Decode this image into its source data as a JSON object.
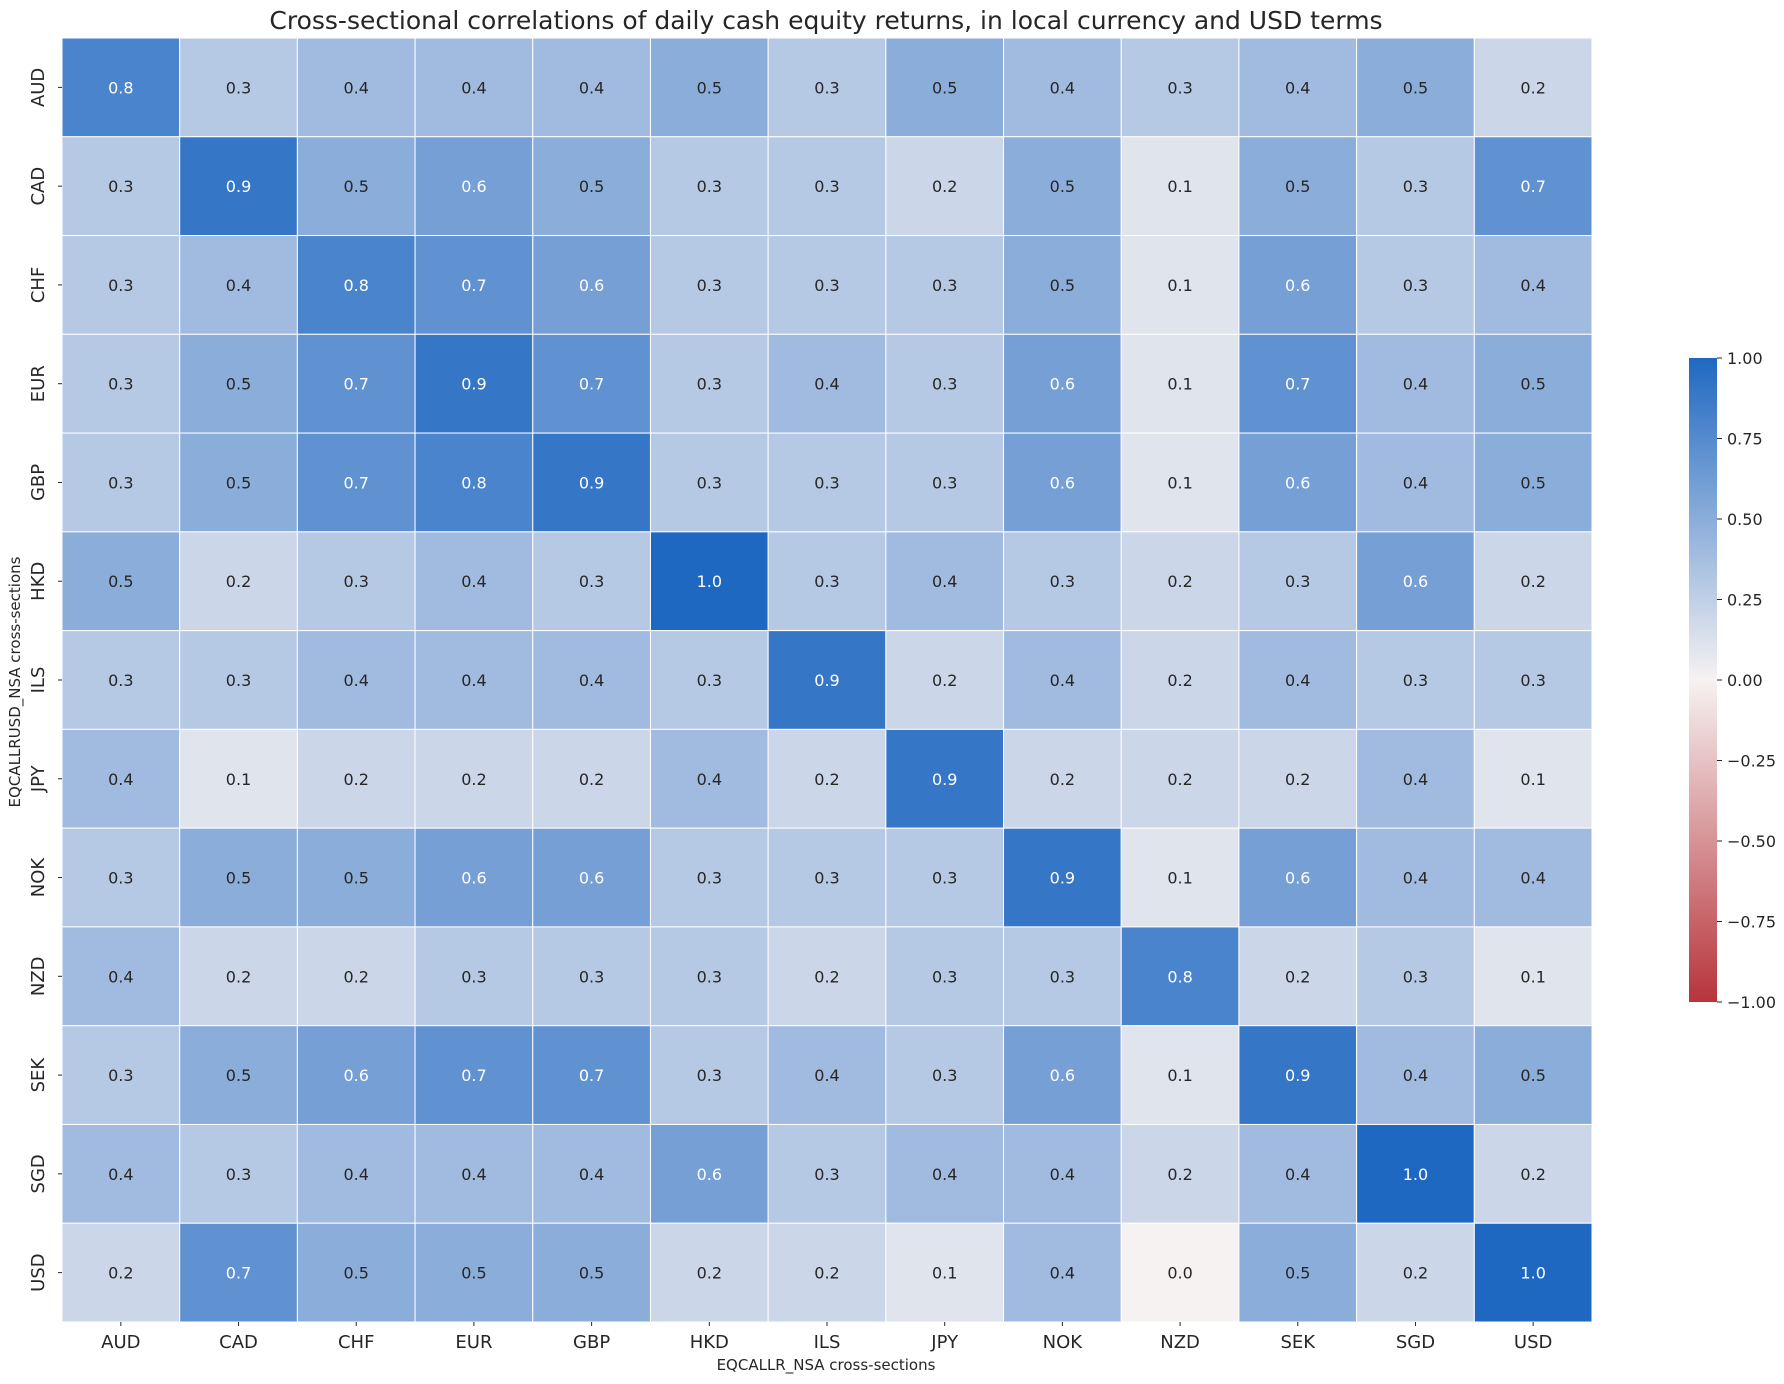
{
  "chart_data": {
    "type": "heatmap",
    "title": "Cross-sectional correlations of daily cash equity returns, in local currency and USD terms",
    "xlabel": "EQCALLR_NSA cross-sections",
    "ylabel": "EQCALLRUSD_NSA cross-sections",
    "x_categories": [
      "AUD",
      "CAD",
      "CHF",
      "EUR",
      "GBP",
      "HKD",
      "ILS",
      "JPY",
      "NOK",
      "NZD",
      "SEK",
      "SGD",
      "USD"
    ],
    "y_categories": [
      "AUD",
      "CAD",
      "CHF",
      "EUR",
      "GBP",
      "HKD",
      "ILS",
      "JPY",
      "NOK",
      "NZD",
      "SEK",
      "SGD",
      "USD"
    ],
    "values": [
      [
        0.8,
        0.3,
        0.4,
        0.4,
        0.4,
        0.5,
        0.3,
        0.5,
        0.4,
        0.3,
        0.4,
        0.5,
        0.2
      ],
      [
        0.3,
        0.9,
        0.5,
        0.6,
        0.5,
        0.3,
        0.3,
        0.2,
        0.5,
        0.1,
        0.5,
        0.3,
        0.7
      ],
      [
        0.3,
        0.4,
        0.8,
        0.7,
        0.6,
        0.3,
        0.3,
        0.3,
        0.5,
        0.1,
        0.6,
        0.3,
        0.4
      ],
      [
        0.3,
        0.5,
        0.7,
        0.9,
        0.7,
        0.3,
        0.4,
        0.3,
        0.6,
        0.1,
        0.7,
        0.4,
        0.5
      ],
      [
        0.3,
        0.5,
        0.7,
        0.8,
        0.9,
        0.3,
        0.3,
        0.3,
        0.6,
        0.1,
        0.6,
        0.4,
        0.5
      ],
      [
        0.5,
        0.2,
        0.3,
        0.4,
        0.3,
        1.0,
        0.3,
        0.4,
        0.3,
        0.2,
        0.3,
        0.6,
        0.2
      ],
      [
        0.3,
        0.3,
        0.4,
        0.4,
        0.4,
        0.3,
        0.9,
        0.2,
        0.4,
        0.2,
        0.4,
        0.3,
        0.3
      ],
      [
        0.4,
        0.1,
        0.2,
        0.2,
        0.2,
        0.4,
        0.2,
        0.9,
        0.2,
        0.2,
        0.2,
        0.4,
        0.1
      ],
      [
        0.3,
        0.5,
        0.5,
        0.6,
        0.6,
        0.3,
        0.3,
        0.3,
        0.9,
        0.1,
        0.6,
        0.4,
        0.4
      ],
      [
        0.4,
        0.2,
        0.2,
        0.3,
        0.3,
        0.3,
        0.2,
        0.3,
        0.3,
        0.8,
        0.2,
        0.3,
        0.1
      ],
      [
        0.3,
        0.5,
        0.6,
        0.7,
        0.7,
        0.3,
        0.4,
        0.3,
        0.6,
        0.1,
        0.9,
        0.4,
        0.5
      ],
      [
        0.4,
        0.3,
        0.4,
        0.4,
        0.4,
        0.6,
        0.3,
        0.4,
        0.4,
        0.2,
        0.4,
        1.0,
        0.2
      ],
      [
        0.2,
        0.7,
        0.5,
        0.5,
        0.5,
        0.2,
        0.2,
        0.1,
        0.4,
        0.0,
        0.5,
        0.2,
        1.0
      ]
    ],
    "value_format": "1 decimal",
    "vmin": -1.0,
    "vmax": 1.0,
    "colorbar_ticks": [
      "1.00",
      "0.75",
      "0.50",
      "0.25",
      "0.00",
      "−0.25",
      "−0.50",
      "−0.75",
      "−1.00"
    ],
    "colormap": {
      "low": "#b7343b",
      "mid": "#f6f2f2",
      "high": "#1f68c2"
    },
    "grid_line_color": "#ffffff"
  }
}
